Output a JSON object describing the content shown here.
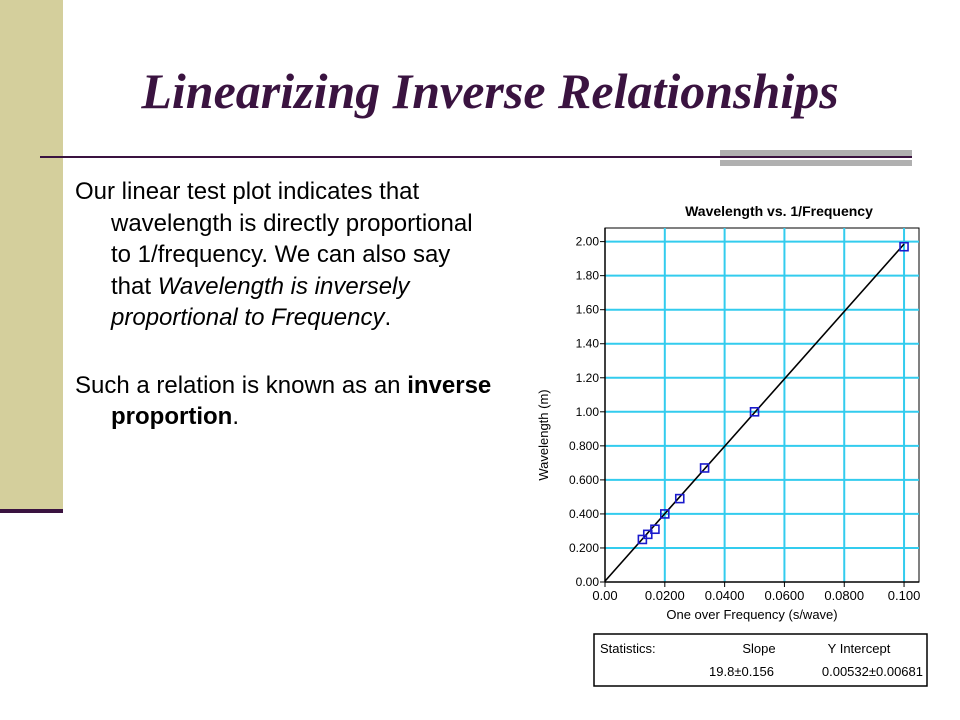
{
  "slide": {
    "title": "Linearizing Inverse Relationships",
    "accent_color": "#3a1340",
    "band_color": "#d4cf9c"
  },
  "body": {
    "p1": {
      "part1": "Our linear test plot indicates that wavelength is directly proportional to 1/frequency. We can also say that ",
      "em": "Wavelength is inversely proportional to Frequency",
      "part2": "."
    },
    "p2": {
      "part1": "Such a relation is known as an ",
      "strong": "inverse proportion",
      "part2": "."
    }
  },
  "chart_data": {
    "type": "scatter",
    "title": "Wavelength vs. 1/Frequency",
    "xlabel": "One over Frequency   (s/wave)",
    "ylabel": "Wavelength   (m)",
    "xlim": [
      0.0,
      0.105
    ],
    "ylim": [
      0.0,
      2.08
    ],
    "x_ticks": [
      0.0,
      0.02,
      0.04,
      0.06,
      0.08,
      0.1
    ],
    "x_tick_labels": [
      "0.00",
      "0.0200",
      "0.0400",
      "0.0600",
      "0.0800",
      "0.100"
    ],
    "y_ticks": [
      0.0,
      0.2,
      0.4,
      0.6,
      0.8,
      1.0,
      1.2,
      1.4,
      1.6,
      1.8,
      2.0
    ],
    "y_tick_labels": [
      "0.00",
      "0.200",
      "0.400",
      "0.600",
      "0.800",
      "1.00",
      "1.20",
      "1.40",
      "1.60",
      "1.80",
      "2.00"
    ],
    "grid": true,
    "grid_color": "#33ccee",
    "marker_color": "#1a1acc",
    "series": [
      {
        "marker": "square",
        "x": [
          0.0125,
          0.0143,
          0.0167,
          0.02,
          0.025,
          0.0333,
          0.05,
          0.1
        ],
        "y": [
          0.25,
          0.28,
          0.31,
          0.4,
          0.49,
          0.67,
          1.0,
          1.97
        ]
      }
    ],
    "fit": {
      "slope": 19.8,
      "intercept": 0.00532,
      "x_range": [
        0.0,
        0.1
      ]
    },
    "stats": {
      "label": "Statistics:",
      "slope_header": "Slope",
      "intercept_header": "Y  Intercept",
      "slope_value": "19.8±0.156",
      "intercept_value": "0.00532±0.00681"
    }
  }
}
